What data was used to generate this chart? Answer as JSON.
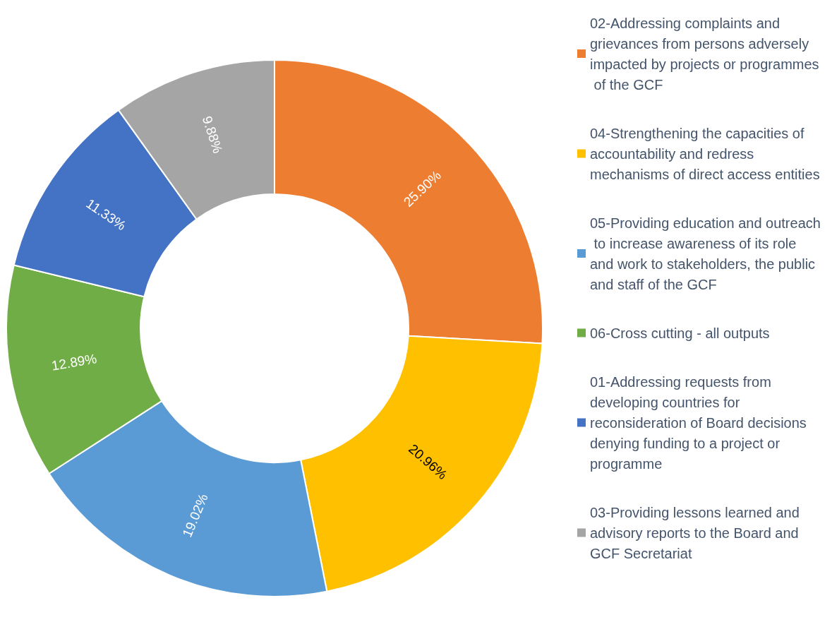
{
  "chart_data": {
    "type": "donut",
    "categories": [
      "02-Addressing complaints and grievances from persons adversely impacted by projects or programmes of the GCF",
      "04-Strengthening the capacities of accountability and redress mechanisms of direct access entities",
      "05-Providing education and outreach to increase awareness of its role and work to stakeholders, the public and staff of the GCF",
      "06-Cross cutting - all outputs",
      "01-Addressing requests from developing countries for reconsideration of Board decisions denying funding to a project or programme",
      "03-Providing lessons learned and advisory reports to the Board and GCF Secretariat"
    ],
    "values": [
      25.9,
      20.96,
      19.02,
      12.89,
      11.33,
      9.88
    ],
    "colors": [
      "#ed7d31",
      "#ffc000",
      "#5b9bd5",
      "#70ad47",
      "#4472c4",
      "#a5a5a5"
    ],
    "value_labels": [
      "25.90%",
      "20.96%",
      "19.02%",
      "12.89%",
      "11.33%",
      "9.88%"
    ],
    "legend": "right"
  }
}
